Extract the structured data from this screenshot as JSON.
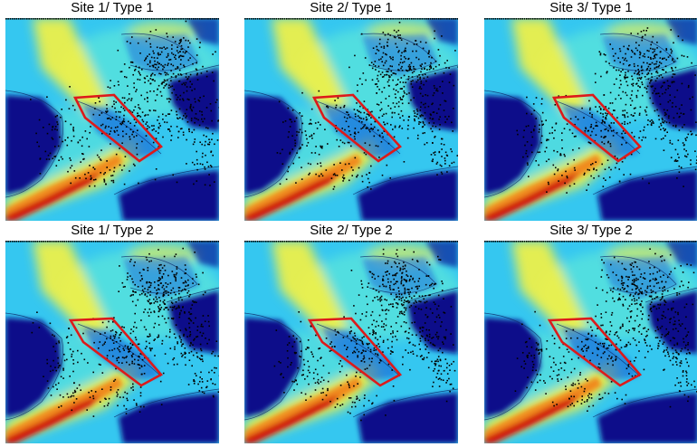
{
  "panels": [
    {
      "title": "Site 1/ Type 1"
    },
    {
      "title": "Site 2/ Type 1"
    },
    {
      "title": "Site 3/ Type 1"
    },
    {
      "title": "Site 1/ Type 2"
    },
    {
      "title": "Site 2/ Type 2"
    },
    {
      "title": "Site 3/ Type 2"
    }
  ],
  "colors": {
    "deep": "#0a0a8a",
    "low": "#1e6fd8",
    "mid": "#35c7f0",
    "aqua": "#59e3dc",
    "yellow": "#f6f241",
    "orange": "#f08a1c",
    "red": "#d01010",
    "outline": "#dd1a1a",
    "points": "#000000"
  }
}
